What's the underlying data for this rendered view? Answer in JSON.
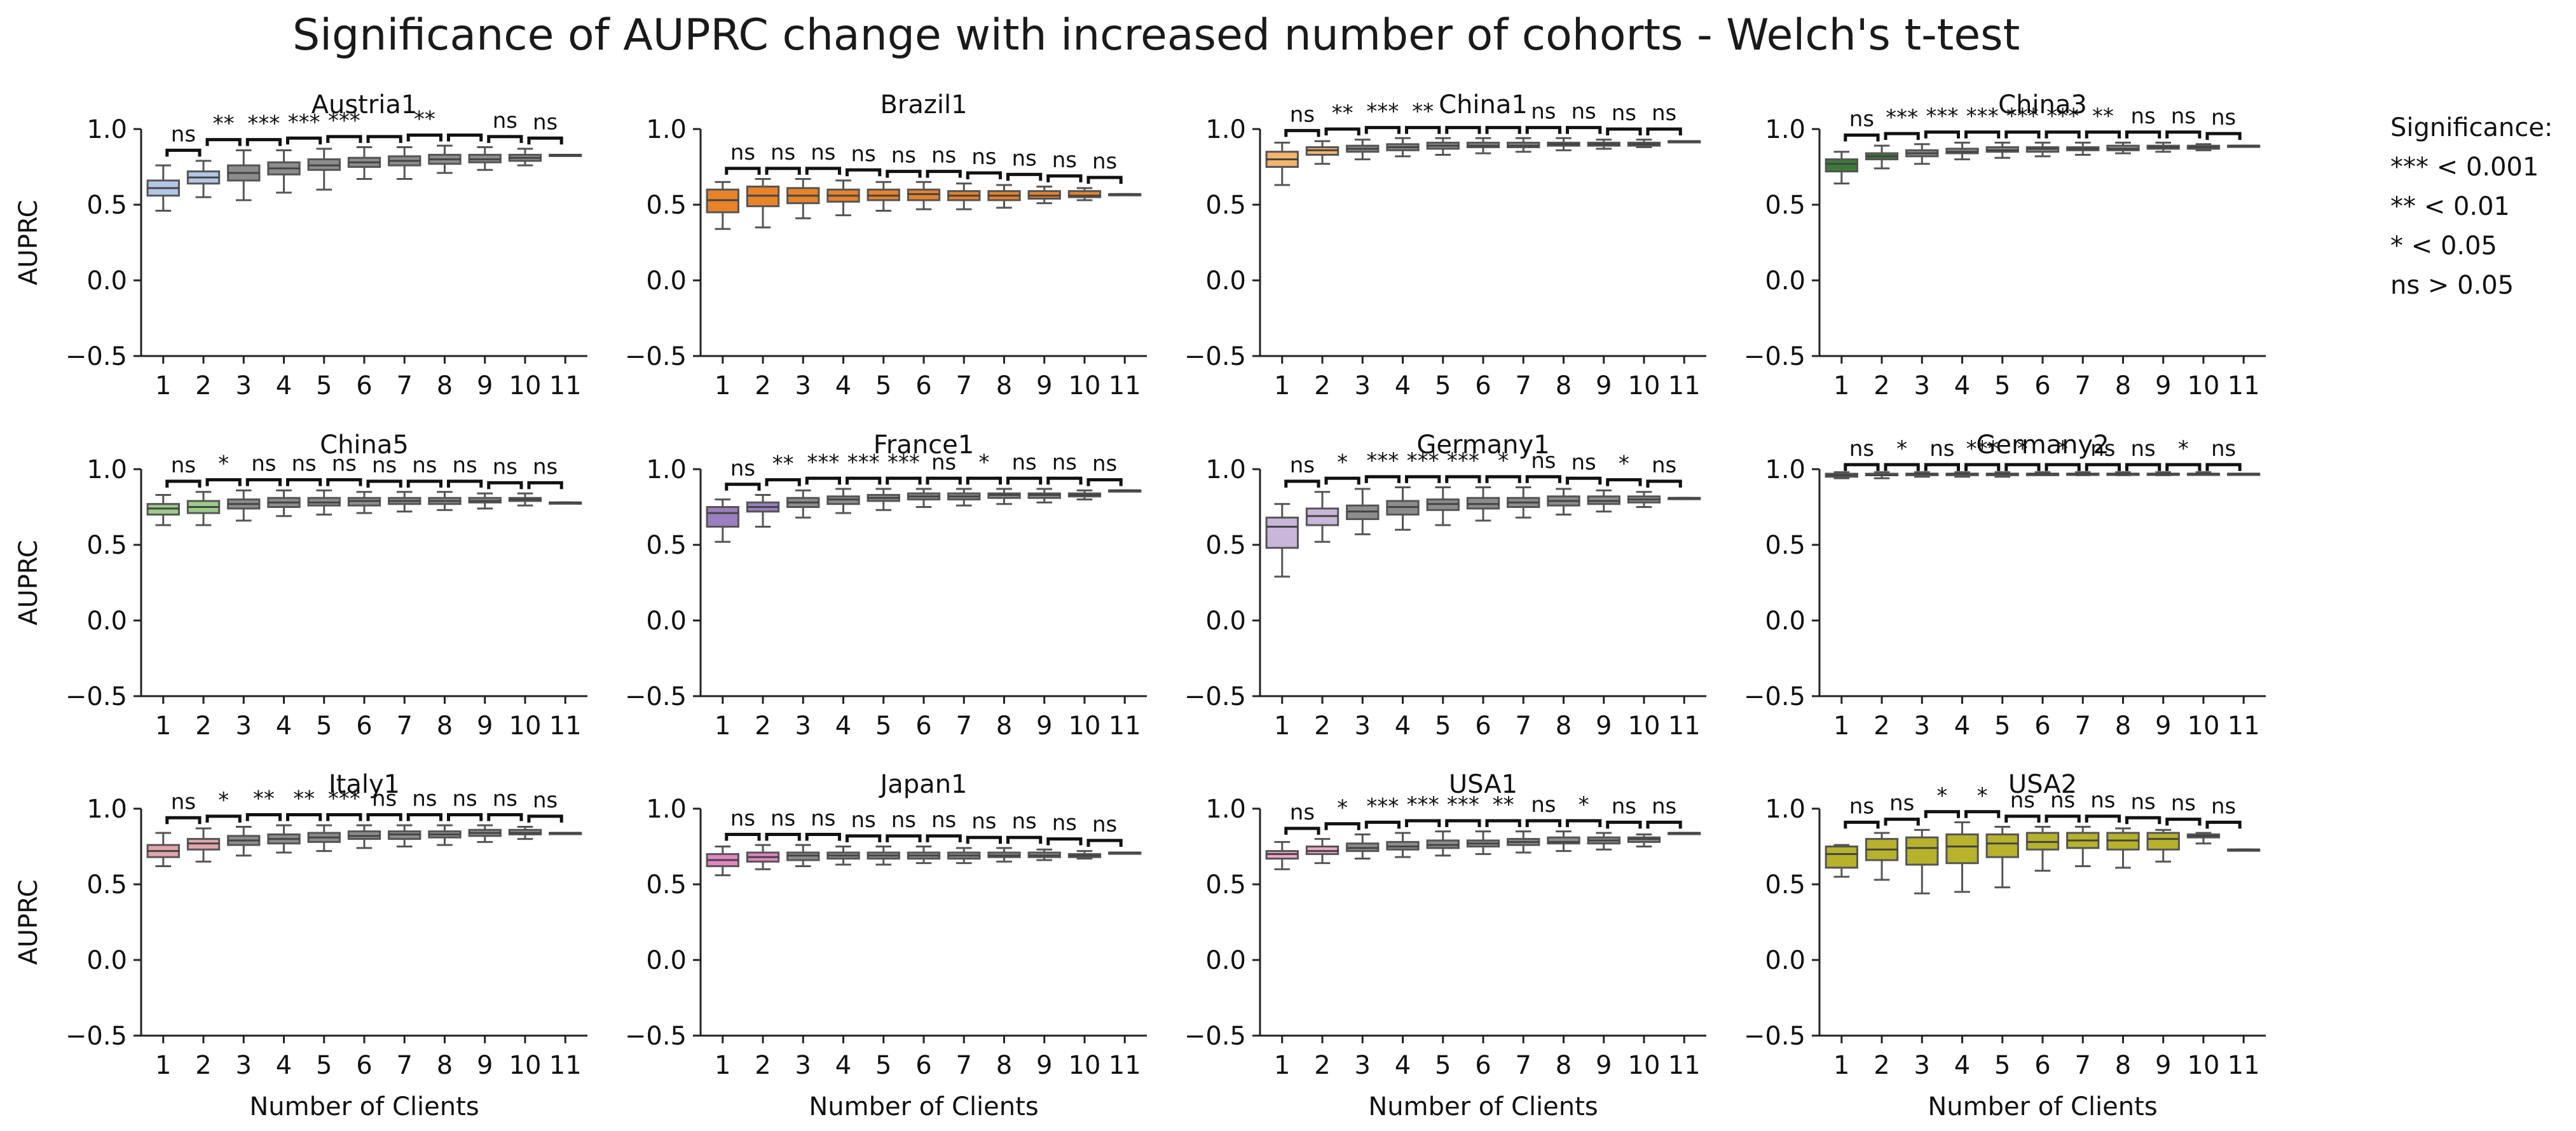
{
  "chart_data": {
    "type": "box",
    "title": "Significance of AUPRC change with increased number of cohorts - Welch's t-test",
    "ylabel": "AUPRC",
    "xlabel": "Number of Clients",
    "x": [
      1,
      2,
      3,
      4,
      5,
      6,
      7,
      8,
      9,
      10,
      11
    ],
    "ylim": [
      -0.5,
      1.0
    ],
    "yticks": [
      -0.5,
      0.0,
      0.5,
      1.0
    ],
    "ytick_labels": [
      "−0.5",
      "0.0",
      "0.5",
      "1.0"
    ],
    "legend": {
      "title": "Significance:",
      "entries": [
        "*** < 0.001",
        "** < 0.01",
        "* < 0.05",
        "ns > 0.05"
      ]
    },
    "panels": [
      {
        "name": "Austria1",
        "color": "#b3c6e7",
        "medians": [
          0.61,
          0.68,
          0.71,
          0.74,
          0.76,
          0.78,
          0.79,
          0.8,
          0.8,
          0.81,
          0.83
        ],
        "q1": [
          0.56,
          0.64,
          0.66,
          0.7,
          0.73,
          0.75,
          0.76,
          0.77,
          0.78,
          0.79,
          0.83
        ],
        "q3": [
          0.66,
          0.72,
          0.76,
          0.78,
          0.8,
          0.81,
          0.82,
          0.83,
          0.83,
          0.83,
          0.83
        ],
        "whisker_low": [
          0.46,
          0.55,
          0.53,
          0.58,
          0.6,
          0.67,
          0.67,
          0.71,
          0.73,
          0.76,
          0.83
        ],
        "whisker_high": [
          0.76,
          0.79,
          0.86,
          0.86,
          0.87,
          0.88,
          0.88,
          0.89,
          0.88,
          0.87,
          0.83
        ],
        "significance": [
          "ns",
          "**",
          "***",
          "***",
          "***",
          "",
          "**",
          "",
          "ns",
          "ns"
        ]
      },
      {
        "name": "Brazil1",
        "color": "#e8832a",
        "medians": [
          0.53,
          0.56,
          0.56,
          0.56,
          0.56,
          0.57,
          0.56,
          0.56,
          0.56,
          0.56,
          0.57
        ],
        "q1": [
          0.45,
          0.49,
          0.51,
          0.52,
          0.53,
          0.53,
          0.53,
          0.53,
          0.54,
          0.55,
          0.57
        ],
        "q3": [
          0.6,
          0.62,
          0.61,
          0.6,
          0.6,
          0.6,
          0.59,
          0.59,
          0.59,
          0.59,
          0.57
        ],
        "whisker_low": [
          0.34,
          0.35,
          0.41,
          0.43,
          0.46,
          0.47,
          0.47,
          0.48,
          0.51,
          0.53,
          0.57
        ],
        "whisker_high": [
          0.65,
          0.67,
          0.67,
          0.66,
          0.65,
          0.65,
          0.64,
          0.63,
          0.62,
          0.61,
          0.57
        ],
        "significance": [
          "ns",
          "ns",
          "ns",
          "ns",
          "ns",
          "ns",
          "ns",
          "ns",
          "ns",
          "ns"
        ]
      },
      {
        "name": "China1",
        "color": "#f5b56c",
        "medians": [
          0.8,
          0.86,
          0.87,
          0.88,
          0.89,
          0.89,
          0.89,
          0.9,
          0.9,
          0.9,
          0.92
        ],
        "q1": [
          0.75,
          0.83,
          0.85,
          0.86,
          0.87,
          0.88,
          0.88,
          0.89,
          0.89,
          0.89,
          0.92
        ],
        "q3": [
          0.85,
          0.88,
          0.89,
          0.9,
          0.91,
          0.91,
          0.91,
          0.91,
          0.91,
          0.91,
          0.92
        ],
        "whisker_low": [
          0.63,
          0.77,
          0.8,
          0.82,
          0.83,
          0.84,
          0.85,
          0.86,
          0.87,
          0.88,
          0.92
        ],
        "whisker_high": [
          0.91,
          0.92,
          0.93,
          0.94,
          0.94,
          0.94,
          0.94,
          0.94,
          0.93,
          0.93,
          0.92
        ],
        "significance": [
          "ns",
          "**",
          "***",
          "**",
          "",
          "",
          "ns",
          "ns",
          "ns",
          "ns"
        ]
      },
      {
        "name": "China3",
        "color": "#3a7d3a",
        "medians": [
          0.77,
          0.82,
          0.84,
          0.85,
          0.86,
          0.87,
          0.87,
          0.87,
          0.88,
          0.88,
          0.89
        ],
        "q1": [
          0.72,
          0.8,
          0.82,
          0.84,
          0.85,
          0.85,
          0.86,
          0.86,
          0.87,
          0.87,
          0.89
        ],
        "q3": [
          0.8,
          0.84,
          0.86,
          0.87,
          0.88,
          0.88,
          0.88,
          0.89,
          0.89,
          0.89,
          0.89
        ],
        "whisker_low": [
          0.64,
          0.74,
          0.77,
          0.8,
          0.81,
          0.82,
          0.83,
          0.84,
          0.85,
          0.86,
          0.89
        ],
        "whisker_high": [
          0.85,
          0.89,
          0.9,
          0.91,
          0.91,
          0.91,
          0.91,
          0.91,
          0.91,
          0.9,
          0.89
        ],
        "significance": [
          "ns",
          "***",
          "***",
          "***",
          "***",
          "***",
          "**",
          "ns",
          "ns",
          "ns"
        ]
      },
      {
        "name": "China5",
        "color": "#9ccc8a",
        "medians": [
          0.74,
          0.75,
          0.77,
          0.78,
          0.78,
          0.79,
          0.79,
          0.79,
          0.79,
          0.8,
          0.78
        ],
        "q1": [
          0.7,
          0.71,
          0.74,
          0.75,
          0.76,
          0.76,
          0.77,
          0.77,
          0.78,
          0.79,
          0.78
        ],
        "q3": [
          0.77,
          0.79,
          0.8,
          0.81,
          0.81,
          0.81,
          0.81,
          0.81,
          0.81,
          0.81,
          0.78
        ],
        "whisker_low": [
          0.63,
          0.63,
          0.66,
          0.69,
          0.7,
          0.71,
          0.72,
          0.73,
          0.74,
          0.76,
          0.78
        ],
        "whisker_high": [
          0.83,
          0.85,
          0.86,
          0.86,
          0.86,
          0.85,
          0.85,
          0.85,
          0.84,
          0.84,
          0.78
        ],
        "significance": [
          "ns",
          "*",
          "ns",
          "ns",
          "ns",
          "ns",
          "ns",
          "ns",
          "ns",
          "ns"
        ]
      },
      {
        "name": "France1",
        "color": "#9b7fc0",
        "medians": [
          0.71,
          0.75,
          0.78,
          0.8,
          0.81,
          0.82,
          0.82,
          0.83,
          0.83,
          0.83,
          0.86
        ],
        "q1": [
          0.62,
          0.72,
          0.75,
          0.77,
          0.79,
          0.8,
          0.8,
          0.81,
          0.81,
          0.82,
          0.86
        ],
        "q3": [
          0.75,
          0.78,
          0.81,
          0.82,
          0.83,
          0.84,
          0.84,
          0.84,
          0.84,
          0.84,
          0.86
        ],
        "whisker_low": [
          0.52,
          0.62,
          0.68,
          0.71,
          0.73,
          0.75,
          0.76,
          0.77,
          0.78,
          0.8,
          0.86
        ],
        "whisker_high": [
          0.8,
          0.83,
          0.86,
          0.87,
          0.87,
          0.87,
          0.87,
          0.87,
          0.87,
          0.86,
          0.86
        ],
        "significance": [
          "ns",
          "**",
          "***",
          "***",
          "***",
          "ns",
          "*",
          "ns",
          "ns",
          "ns"
        ]
      },
      {
        "name": "Germany1",
        "color": "#c9b6d9",
        "medians": [
          0.62,
          0.69,
          0.72,
          0.75,
          0.77,
          0.77,
          0.78,
          0.79,
          0.79,
          0.8,
          0.81
        ],
        "q1": [
          0.48,
          0.63,
          0.67,
          0.7,
          0.73,
          0.74,
          0.75,
          0.76,
          0.77,
          0.78,
          0.81
        ],
        "q3": [
          0.68,
          0.74,
          0.76,
          0.79,
          0.8,
          0.81,
          0.81,
          0.82,
          0.82,
          0.82,
          0.81
        ],
        "whisker_low": [
          0.29,
          0.52,
          0.57,
          0.6,
          0.63,
          0.66,
          0.68,
          0.7,
          0.72,
          0.75,
          0.81
        ],
        "whisker_high": [
          0.77,
          0.85,
          0.87,
          0.88,
          0.88,
          0.88,
          0.88,
          0.87,
          0.86,
          0.85,
          0.81
        ],
        "significance": [
          "ns",
          "*",
          "***",
          "***",
          "***",
          "*",
          "ns",
          "ns",
          "*",
          "ns"
        ]
      },
      {
        "name": "Germany2",
        "color": "#6a6a6a",
        "medians": [
          0.96,
          0.96,
          0.97,
          0.97,
          0.97,
          0.97,
          0.97,
          0.97,
          0.97,
          0.97,
          0.97
        ],
        "q1": [
          0.95,
          0.96,
          0.96,
          0.96,
          0.96,
          0.96,
          0.97,
          0.97,
          0.97,
          0.97,
          0.97
        ],
        "q3": [
          0.97,
          0.97,
          0.97,
          0.97,
          0.97,
          0.97,
          0.97,
          0.97,
          0.97,
          0.97,
          0.97
        ],
        "whisker_low": [
          0.94,
          0.94,
          0.95,
          0.95,
          0.95,
          0.96,
          0.96,
          0.96,
          0.96,
          0.97,
          0.97
        ],
        "whisker_high": [
          0.98,
          0.98,
          0.98,
          0.98,
          0.98,
          0.98,
          0.98,
          0.98,
          0.98,
          0.98,
          0.97
        ],
        "significance": [
          "ns",
          "*",
          "ns",
          "***",
          "*",
          "*",
          "ns",
          "ns",
          "*",
          "ns"
        ]
      },
      {
        "name": "Italy1",
        "color": "#e3a6ad",
        "medians": [
          0.72,
          0.77,
          0.79,
          0.8,
          0.81,
          0.82,
          0.83,
          0.83,
          0.84,
          0.84,
          0.84
        ],
        "q1": [
          0.68,
          0.73,
          0.76,
          0.77,
          0.78,
          0.8,
          0.8,
          0.81,
          0.82,
          0.83,
          0.84
        ],
        "q3": [
          0.76,
          0.8,
          0.82,
          0.83,
          0.84,
          0.85,
          0.85,
          0.85,
          0.86,
          0.86,
          0.84
        ],
        "whisker_low": [
          0.62,
          0.65,
          0.69,
          0.71,
          0.72,
          0.74,
          0.75,
          0.76,
          0.78,
          0.8,
          0.84
        ],
        "whisker_high": [
          0.84,
          0.87,
          0.88,
          0.89,
          0.89,
          0.89,
          0.89,
          0.89,
          0.89,
          0.88,
          0.84
        ],
        "significance": [
          "ns",
          "*",
          "**",
          "**",
          "***",
          "ns",
          "ns",
          "ns",
          "ns",
          "ns"
        ]
      },
      {
        "name": "Japan1",
        "color": "#e385c5",
        "medians": [
          0.66,
          0.68,
          0.69,
          0.69,
          0.69,
          0.69,
          0.69,
          0.69,
          0.69,
          0.69,
          0.71
        ],
        "q1": [
          0.62,
          0.65,
          0.66,
          0.67,
          0.67,
          0.67,
          0.67,
          0.68,
          0.68,
          0.68,
          0.71
        ],
        "q3": [
          0.7,
          0.71,
          0.71,
          0.71,
          0.71,
          0.71,
          0.71,
          0.71,
          0.71,
          0.7,
          0.71
        ],
        "whisker_low": [
          0.56,
          0.6,
          0.62,
          0.63,
          0.63,
          0.64,
          0.64,
          0.65,
          0.66,
          0.67,
          0.71
        ],
        "whisker_high": [
          0.75,
          0.76,
          0.76,
          0.75,
          0.75,
          0.75,
          0.74,
          0.74,
          0.73,
          0.72,
          0.71
        ],
        "significance": [
          "ns",
          "ns",
          "ns",
          "ns",
          "ns",
          "ns",
          "ns",
          "ns",
          "ns",
          "ns"
        ]
      },
      {
        "name": "USA1",
        "color": "#f0a8c8",
        "medians": [
          0.7,
          0.72,
          0.74,
          0.75,
          0.76,
          0.77,
          0.78,
          0.78,
          0.79,
          0.8,
          0.84
        ],
        "q1": [
          0.67,
          0.7,
          0.72,
          0.73,
          0.74,
          0.75,
          0.76,
          0.77,
          0.77,
          0.78,
          0.84
        ],
        "q3": [
          0.72,
          0.75,
          0.77,
          0.78,
          0.79,
          0.79,
          0.8,
          0.81,
          0.81,
          0.81,
          0.84
        ],
        "whisker_low": [
          0.6,
          0.64,
          0.67,
          0.68,
          0.69,
          0.7,
          0.71,
          0.72,
          0.73,
          0.75,
          0.84
        ],
        "whisker_high": [
          0.78,
          0.8,
          0.83,
          0.84,
          0.85,
          0.85,
          0.85,
          0.85,
          0.84,
          0.83,
          0.84
        ],
        "significance": [
          "ns",
          "*",
          "***",
          "***",
          "***",
          "**",
          "ns",
          "*",
          "ns",
          "ns"
        ]
      },
      {
        "name": "USA2",
        "color": "#b7b22c",
        "medians": [
          0.7,
          0.73,
          0.74,
          0.75,
          0.77,
          0.78,
          0.79,
          0.79,
          0.8,
          0.82,
          0.73
        ],
        "q1": [
          0.61,
          0.66,
          0.63,
          0.64,
          0.68,
          0.73,
          0.74,
          0.73,
          0.73,
          0.81,
          0.73
        ],
        "q3": [
          0.75,
          0.8,
          0.81,
          0.83,
          0.83,
          0.84,
          0.84,
          0.84,
          0.84,
          0.83,
          0.73
        ],
        "whisker_low": [
          0.55,
          0.53,
          0.44,
          0.45,
          0.48,
          0.59,
          0.62,
          0.61,
          0.65,
          0.77,
          0.73
        ],
        "whisker_high": [
          0.76,
          0.84,
          0.86,
          0.91,
          0.88,
          0.88,
          0.88,
          0.87,
          0.86,
          0.84,
          0.73
        ],
        "significance": [
          "ns",
          "ns",
          "*",
          "*",
          "ns",
          "ns",
          "ns",
          "ns",
          "ns",
          "ns"
        ]
      }
    ]
  }
}
